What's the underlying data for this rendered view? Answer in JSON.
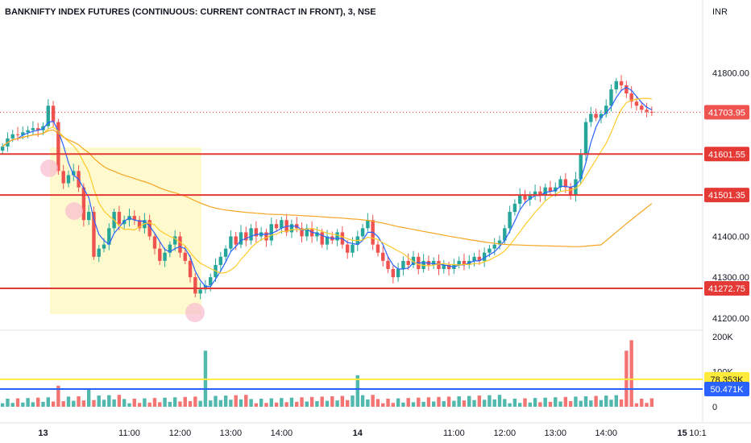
{
  "chart_data": {
    "type": "candlestick",
    "title": "BANKNIFTY INDEX FUTURES (CONTINUOUS: CURRENT CONTRACT IN FRONT), 3, NSE",
    "currency": "INR",
    "y_ticks": [
      "41800.00",
      "41400.00",
      "41300.00",
      "41200.00"
    ],
    "ylim": [
      41180,
      41900
    ],
    "current_price": {
      "label": "41703.95",
      "value": 41703.95
    },
    "levels": [
      {
        "label": "41601.55",
        "value": 41601.55
      },
      {
        "label": "41501.35",
        "value": 41501.35
      },
      {
        "label": "41272.75",
        "value": 41272.75
      }
    ],
    "x_tick_labels": [
      {
        "label": "13",
        "bold": true,
        "i": 8
      },
      {
        "label": "11:00",
        "i": 25
      },
      {
        "label": "12:00",
        "i": 35
      },
      {
        "label": "13:00",
        "i": 45
      },
      {
        "label": "14:00",
        "i": 55
      },
      {
        "label": "14",
        "bold": true,
        "i": 70
      },
      {
        "label": "11:00",
        "i": 89
      },
      {
        "label": "12:00",
        "i": 99
      },
      {
        "label": "13:00",
        "i": 109
      },
      {
        "label": "14:00",
        "i": 119
      },
      {
        "label": "15",
        "bold": true,
        "i": 134
      },
      {
        "label": "10:1",
        "i": 143
      }
    ],
    "candles_close": [
      41620,
      41640,
      41650,
      41648,
      41655,
      41660,
      41665,
      41660,
      41670,
      41720,
      41680,
      41560,
      41530,
      41550,
      41560,
      41520,
      41440,
      41460,
      41350,
      41370,
      41380,
      41420,
      41460,
      41430,
      41440,
      41450,
      41440,
      41420,
      41440,
      41400,
      41370,
      41340,
      41360,
      41380,
      41400,
      41360,
      41340,
      41300,
      41260,
      41270,
      41280,
      41300,
      41330,
      41350,
      41370,
      41400,
      41380,
      41410,
      41390,
      41420,
      41400,
      41410,
      41390,
      41430,
      41420,
      41440,
      41410,
      41430,
      41420,
      41400,
      41420,
      41400,
      41410,
      41380,
      41400,
      41390,
      41410,
      41380,
      41360,
      41380,
      41400,
      41420,
      41440,
      41380,
      41360,
      41340,
      41320,
      41300,
      41320,
      41340,
      41330,
      41350,
      41320,
      41340,
      41330,
      41340,
      41320,
      41330,
      41320,
      41330,
      41340,
      41330,
      41340,
      41350,
      41340,
      41360,
      41370,
      41380,
      41390,
      41420,
      41460,
      41480,
      41500,
      41490,
      41500,
      41510,
      41500,
      41520,
      41510,
      41520,
      41540,
      41520,
      41500,
      41540,
      41600,
      41680,
      41700,
      41690,
      41700,
      41720,
      41760,
      41780,
      41770,
      41750,
      41730,
      41720,
      41710,
      41705,
      41704
    ],
    "vwap_value_anchor": {
      "start": 41520,
      "end": 41560
    },
    "volume_axis": [
      "200K",
      "100K",
      "0"
    ],
    "volume_badges": [
      {
        "label": "78.353K",
        "color": "#ffeb3b"
      },
      {
        "label": "50.471K",
        "color": "#2962ff"
      }
    ],
    "colors": {
      "up": "#26a69a",
      "down": "#ef5350",
      "level": "#e53935",
      "ma_fast": "#2962ff",
      "ma_slow": "#ffca28",
      "vwap": "#f5a623",
      "zone": "#fff9c4"
    }
  }
}
